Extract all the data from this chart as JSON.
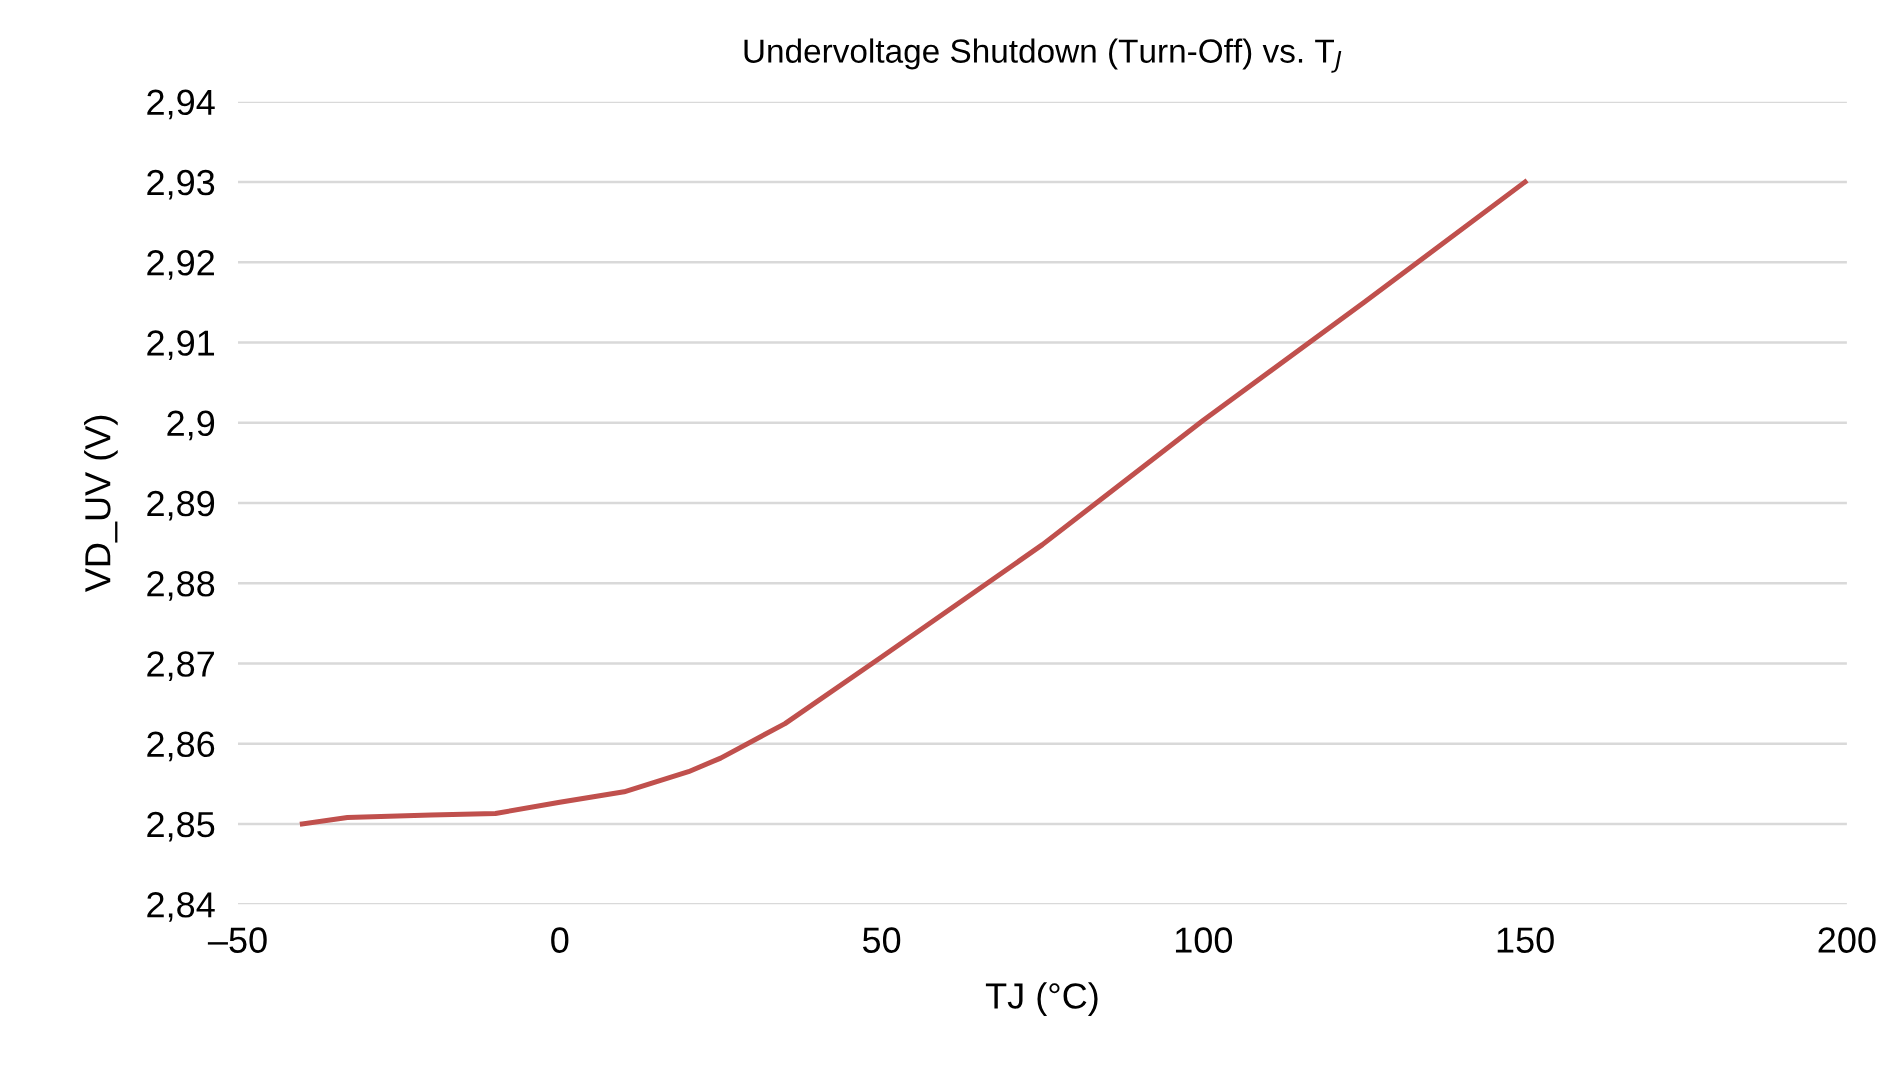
{
  "chart_data": {
    "type": "line",
    "title": "Undervoltage Shutdown (Turn-Off) vs. T$_{J}$",
    "xlabel": "TJ (°C)",
    "ylabel": "VD_UV (V)",
    "series": [
      {
        "color": "#c0504d",
        "x": [
          -40,
          -33,
          -20,
          -10,
          0,
          10,
          20,
          25,
          35,
          50,
          75,
          100,
          125,
          150
        ],
        "values": [
          2.85,
          2.8508,
          2.8511,
          2.8513,
          2.8527,
          2.854,
          2.8565,
          2.8582,
          2.8625,
          2.8708,
          2.8848,
          2.9003,
          2.915,
          2.93
        ]
      }
    ],
    "xlim": [
      -50,
      200
    ],
    "xticks": [
      {
        "value": -50,
        "label": "–50"
      },
      0,
      50,
      100,
      150,
      200
    ],
    "ylim": [
      2.84,
      2.94
    ],
    "yticks": [
      {
        "value": 2.84,
        "label": "2,84"
      },
      {
        "value": 2.85,
        "label": "2,85"
      },
      {
        "value": 2.86,
        "label": "2,86"
      },
      {
        "value": 2.87,
        "label": "2,87"
      },
      {
        "value": 2.88,
        "label": "2,88"
      },
      {
        "value": 2.89,
        "label": "2,89"
      },
      {
        "value": 2.9,
        "label": "2,9"
      },
      {
        "value": 2.91,
        "label": "2,91"
      },
      {
        "value": 2.92,
        "label": "2,92"
      },
      {
        "value": 2.93,
        "label": "2,93"
      },
      {
        "value": 2.94,
        "label": "2,94"
      }
    ],
    "grid": "y",
    "legend": false,
    "marker": "none",
    "line_style": "solid"
  }
}
